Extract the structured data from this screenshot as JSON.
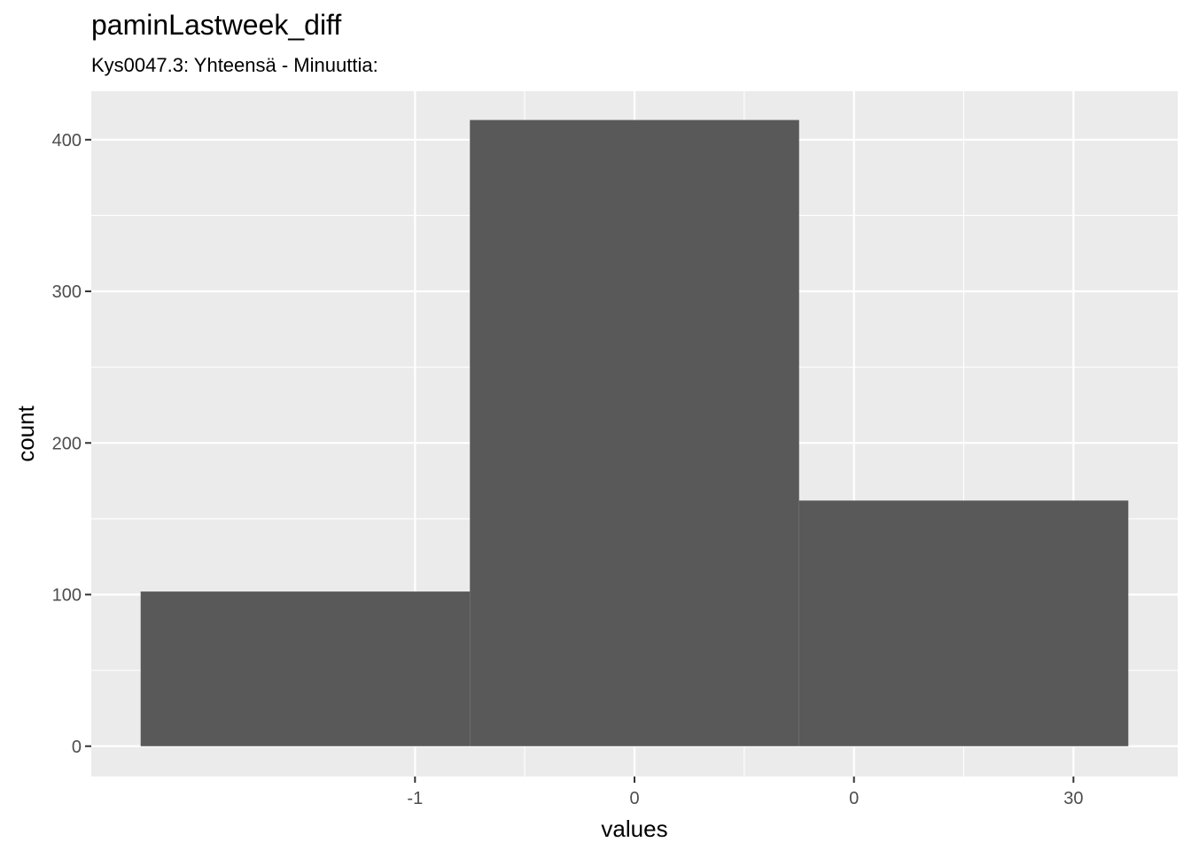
{
  "chart_data": {
    "type": "bar",
    "title": "paminLastweek_diff",
    "subtitle": "Kys0047.3: Yhteensä - Minuuttia:",
    "xlabel": "values",
    "ylabel": "count",
    "x_ticks": [
      "-1",
      "0",
      "0",
      "30"
    ],
    "y_ticks": [
      0,
      100,
      200,
      300,
      400
    ],
    "ylim": [
      -20,
      432
    ],
    "bins": [
      {
        "start": 0,
        "end": 1.5,
        "count": 102
      },
      {
        "start": 1.5,
        "end": 3,
        "count": 413
      },
      {
        "start": 3,
        "end": 4.5,
        "count": 162
      }
    ],
    "xlim": [
      -0.225,
      4.725
    ],
    "x_tick_positions": [
      1.25,
      2.25,
      3.25,
      4.25
    ],
    "bar_color": "#595959",
    "panel_color": "#ebebeb",
    "grid": true
  }
}
